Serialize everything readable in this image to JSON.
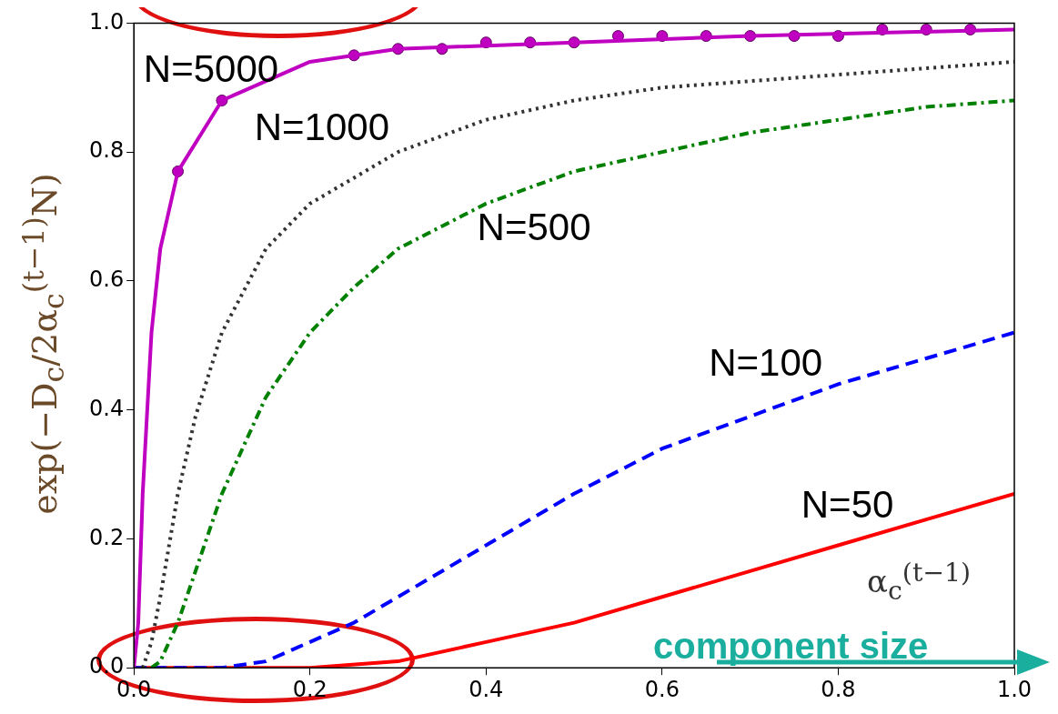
{
  "chart_data": {
    "type": "line",
    "xlabel": "α$_{c}$$^{(t−1)}$",
    "ylabel": "exp(−D$_{c}$/2α$_{c}$$^{(t−1)}$N)",
    "xlim": [
      0,
      1
    ],
    "ylim": [
      0,
      1
    ],
    "xticks": [
      {
        "value": 0,
        "label": "0.0"
      },
      {
        "value": 0.2,
        "label": "0.2"
      },
      {
        "value": 0.4,
        "label": "0.4"
      },
      {
        "value": 0.6,
        "label": "0.6"
      },
      {
        "value": 0.8,
        "label": "0.8"
      },
      {
        "value": 1,
        "label": "1.0"
      }
    ],
    "yticks": [
      {
        "value": 0,
        "label": "0.0"
      },
      {
        "value": 0.2,
        "label": "0.2"
      },
      {
        "value": 0.4,
        "label": "0.4"
      },
      {
        "value": 0.6,
        "label": "0.6"
      },
      {
        "value": 0.8,
        "label": "0.8"
      },
      {
        "value": 1,
        "label": "1.0"
      }
    ],
    "grid": false,
    "legend": false,
    "series": [
      {
        "name": "N=5000",
        "color": "#c000c0",
        "line_style": "solid",
        "marker": "none",
        "x": [
          0,
          0.005,
          0.01,
          0.02,
          0.03,
          0.05,
          0.1,
          0.2,
          0.3,
          0.5,
          0.7,
          1.0
        ],
        "values": [
          0,
          0.07,
          0.27,
          0.52,
          0.65,
          0.77,
          0.88,
          0.94,
          0.96,
          0.97,
          0.98,
          0.99
        ]
      },
      {
        "type": "scatter",
        "color": "#c000c0",
        "marker": "circle",
        "x": [
          0.05,
          0.1,
          0.25,
          0.3,
          0.35,
          0.4,
          0.45,
          0.5,
          0.55,
          0.6,
          0.65,
          0.7,
          0.75,
          0.8,
          0.85,
          0.9,
          0.95
        ],
        "values": [
          0.77,
          0.88,
          0.95,
          0.96,
          0.96,
          0.97,
          0.97,
          0.97,
          0.98,
          0.98,
          0.98,
          0.98,
          0.98,
          0.98,
          0.99,
          0.99,
          0.99
        ]
      },
      {
        "name": "N=1000",
        "color": "#333333",
        "line_style": "dotted",
        "marker": "none",
        "x": [
          0.01,
          0.02,
          0.03,
          0.05,
          0.07,
          0.1,
          0.15,
          0.2,
          0.3,
          0.4,
          0.5,
          0.6,
          0.7,
          0.8,
          0.9,
          1.0
        ],
        "values": [
          0,
          0.04,
          0.11,
          0.27,
          0.39,
          0.52,
          0.65,
          0.72,
          0.8,
          0.85,
          0.88,
          0.9,
          0.91,
          0.92,
          0.93,
          0.94
        ]
      },
      {
        "name": "N=500",
        "color": "#008000",
        "line_style": "dashdot",
        "marker": "none",
        "x": [
          0.02,
          0.03,
          0.05,
          0.07,
          0.1,
          0.15,
          0.2,
          0.25,
          0.3,
          0.4,
          0.5,
          0.6,
          0.7,
          0.8,
          0.9,
          1.0
        ],
        "values": [
          0,
          0.01,
          0.07,
          0.15,
          0.27,
          0.42,
          0.52,
          0.59,
          0.65,
          0.72,
          0.77,
          0.8,
          0.83,
          0.85,
          0.87,
          0.88
        ]
      },
      {
        "name": "N=100",
        "color": "#0000ff",
        "line_style": "dashed",
        "marker": "none",
        "x": [
          0,
          0.1,
          0.15,
          0.2,
          0.25,
          0.3,
          0.4,
          0.5,
          0.6,
          0.7,
          0.8,
          0.9,
          1.0
        ],
        "values": [
          0,
          0,
          0.01,
          0.04,
          0.07,
          0.11,
          0.19,
          0.27,
          0.34,
          0.39,
          0.44,
          0.48,
          0.52
        ]
      },
      {
        "name": "N=50",
        "color": "#ff0000",
        "line_style": "solid",
        "marker": "none",
        "x": [
          0,
          0.2,
          0.3,
          0.4,
          0.5,
          0.6,
          0.7,
          0.8,
          0.9,
          1.0
        ],
        "values": [
          0,
          0,
          0.01,
          0.04,
          0.07,
          0.11,
          0.15,
          0.19,
          0.23,
          0.27
        ]
      }
    ],
    "annotations": [
      "component size"
    ]
  }
}
